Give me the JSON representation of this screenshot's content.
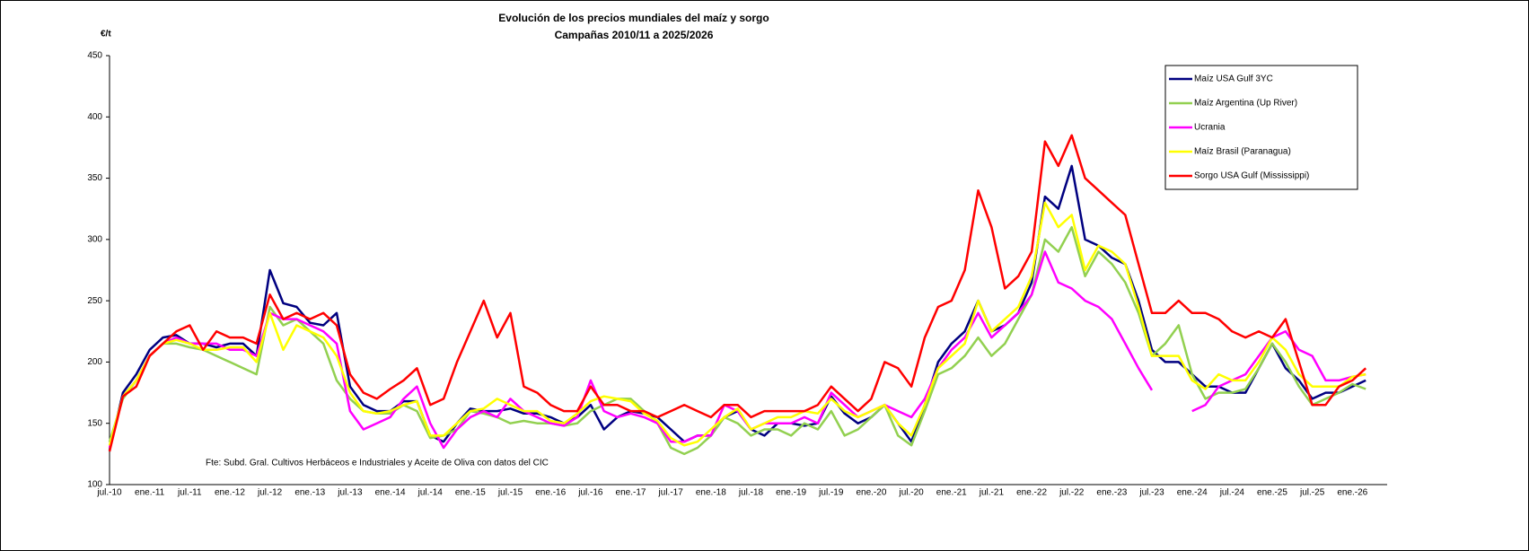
{
  "chart_data": {
    "type": "line",
    "title": "Evolución de los precios mundiales del maíz y sorgo",
    "subtitle": "Campañas 2010/11 a 2025/2026",
    "y_label": "€/t",
    "annotation": "Fte: Subd. Gral. Cultivos Herbáceos e Industriales y Aceite de Oliva con datos del CIC",
    "categories": [
      "jul.-10",
      null,
      null,
      "ene.-11",
      null,
      null,
      "jul.-11",
      null,
      null,
      "ene.-12",
      null,
      null,
      "jul.-12",
      null,
      null,
      "ene.-13",
      null,
      null,
      "jul.-13",
      null,
      null,
      "ene.-14",
      null,
      null,
      "jul.-14",
      null,
      null,
      "ene.-15",
      null,
      null,
      "jul.-15",
      null,
      null,
      "ene.-16",
      null,
      null,
      "jul.-16",
      null,
      null,
      "ene.-17",
      null,
      null,
      "jul.-17",
      null,
      null,
      "ene.-18",
      null,
      null,
      "jul.-18",
      null,
      null,
      "ene.-19",
      null,
      null,
      "jul.-19",
      null,
      null,
      "ene.-20",
      null,
      null,
      "jul.-20",
      null,
      null,
      "ene.-21",
      null,
      null,
      "jul.-21",
      null,
      null,
      "ene.-22",
      null,
      null,
      "jul.-22",
      null,
      null,
      "ene.-23",
      null,
      null,
      "jul.-23",
      null,
      null,
      "ene.-24",
      null,
      null,
      "jul.-24",
      null,
      null,
      "ene.-25",
      null,
      null,
      "jul.-25",
      null,
      null,
      "ene.-26",
      null
    ],
    "series": [
      {
        "name": "Maíz USA Gulf 3YC",
        "color": "#000080",
        "values": [
          128,
          175,
          190,
          210,
          220,
          222,
          215,
          215,
          212,
          215,
          215,
          205,
          275,
          248,
          245,
          232,
          230,
          240,
          180,
          165,
          160,
          160,
          168,
          168,
          140,
          135,
          150,
          162,
          160,
          160,
          162,
          158,
          158,
          155,
          150,
          155,
          165,
          145,
          155,
          160,
          158,
          155,
          145,
          135,
          140,
          140,
          155,
          160,
          145,
          140,
          150,
          150,
          148,
          150,
          172,
          158,
          150,
          155,
          165,
          150,
          135,
          165,
          200,
          215,
          225,
          250,
          225,
          230,
          240,
          265,
          335,
          325,
          360,
          300,
          295,
          285,
          280,
          250,
          210,
          200,
          200,
          190,
          180,
          180,
          175,
          175,
          195,
          215,
          195,
          185,
          170,
          175,
          175,
          180,
          185
        ]
      },
      {
        "name": "Maíz Argentina (Up River)",
        "color": "#92d050",
        "values": [
          135,
          170,
          185,
          205,
          215,
          215,
          212,
          210,
          205,
          200,
          195,
          190,
          245,
          230,
          235,
          225,
          215,
          185,
          170,
          160,
          158,
          158,
          165,
          160,
          138,
          140,
          145,
          160,
          158,
          155,
          150,
          152,
          150,
          150,
          148,
          150,
          160,
          165,
          170,
          170,
          160,
          150,
          130,
          125,
          130,
          140,
          155,
          150,
          140,
          145,
          145,
          140,
          150,
          145,
          160,
          140,
          145,
          155,
          165,
          140,
          132,
          160,
          190,
          195,
          205,
          220,
          205,
          215,
          235,
          255,
          300,
          290,
          310,
          270,
          290,
          280,
          265,
          240,
          205,
          215,
          230,
          190,
          170,
          175,
          175,
          178,
          195,
          215,
          200,
          180,
          165,
          170,
          175,
          182,
          178
        ]
      },
      {
        "name": "Ucrania",
        "color": "#ff00ff",
        "values": [
          130,
          172,
          185,
          205,
          215,
          220,
          215,
          215,
          215,
          210,
          210,
          205,
          240,
          235,
          235,
          230,
          225,
          215,
          160,
          145,
          150,
          155,
          170,
          180,
          150,
          130,
          145,
          155,
          160,
          155,
          170,
          160,
          155,
          150,
          148,
          155,
          185,
          160,
          155,
          158,
          155,
          150,
          135,
          135,
          140,
          140,
          165,
          160,
          145,
          150,
          150,
          150,
          155,
          150,
          175,
          165,
          155,
          160,
          165,
          160,
          155,
          170,
          195,
          210,
          220,
          240,
          220,
          230,
          240,
          255,
          290,
          265,
          260,
          250,
          245,
          235,
          215,
          195,
          177,
          null,
          null,
          160,
          165,
          180,
          185,
          190,
          205,
          220,
          225,
          210,
          205,
          185,
          185,
          188,
          190
        ]
      },
      {
        "name": "Maíz Brasil (Paranagua)",
        "color": "#ffff00",
        "values": [
          132,
          172,
          185,
          205,
          215,
          218,
          215,
          210,
          210,
          212,
          212,
          200,
          240,
          210,
          230,
          225,
          220,
          205,
          175,
          160,
          158,
          160,
          165,
          168,
          140,
          140,
          150,
          160,
          162,
          170,
          165,
          160,
          160,
          152,
          150,
          158,
          168,
          172,
          170,
          168,
          158,
          152,
          138,
          132,
          135,
          145,
          155,
          162,
          145,
          150,
          155,
          155,
          160,
          158,
          170,
          160,
          155,
          160,
          165,
          150,
          140,
          165,
          195,
          205,
          215,
          250,
          225,
          235,
          245,
          270,
          330,
          310,
          320,
          275,
          295,
          290,
          280,
          245,
          205,
          205,
          205,
          185,
          178,
          190,
          185,
          185,
          200,
          220,
          210,
          190,
          180,
          180,
          180,
          188,
          190
        ]
      },
      {
        "name": "Sorgo USA Gulf (Mississippi)",
        "color": "#ff0000",
        "values": [
          127,
          172,
          180,
          205,
          215,
          225,
          230,
          210,
          225,
          220,
          220,
          215,
          255,
          235,
          240,
          235,
          240,
          230,
          190,
          175,
          170,
          178,
          185,
          195,
          165,
          170,
          200,
          225,
          250,
          220,
          240,
          180,
          175,
          165,
          160,
          160,
          180,
          165,
          165,
          160,
          160,
          155,
          160,
          165,
          160,
          155,
          165,
          165,
          155,
          160,
          160,
          160,
          160,
          165,
          180,
          170,
          160,
          170,
          200,
          195,
          180,
          220,
          245,
          250,
          275,
          340,
          310,
          260,
          270,
          290,
          380,
          360,
          385,
          350,
          340,
          330,
          320,
          280,
          240,
          240,
          250,
          240,
          240,
          235,
          225,
          220,
          225,
          220,
          235,
          200,
          165,
          165,
          180,
          185,
          195
        ]
      }
    ],
    "ylim": [
      100,
      450
    ],
    "yticks": [
      100,
      150,
      200,
      250,
      300,
      350,
      400,
      450
    ],
    "grid": false,
    "legend": "upper right"
  }
}
